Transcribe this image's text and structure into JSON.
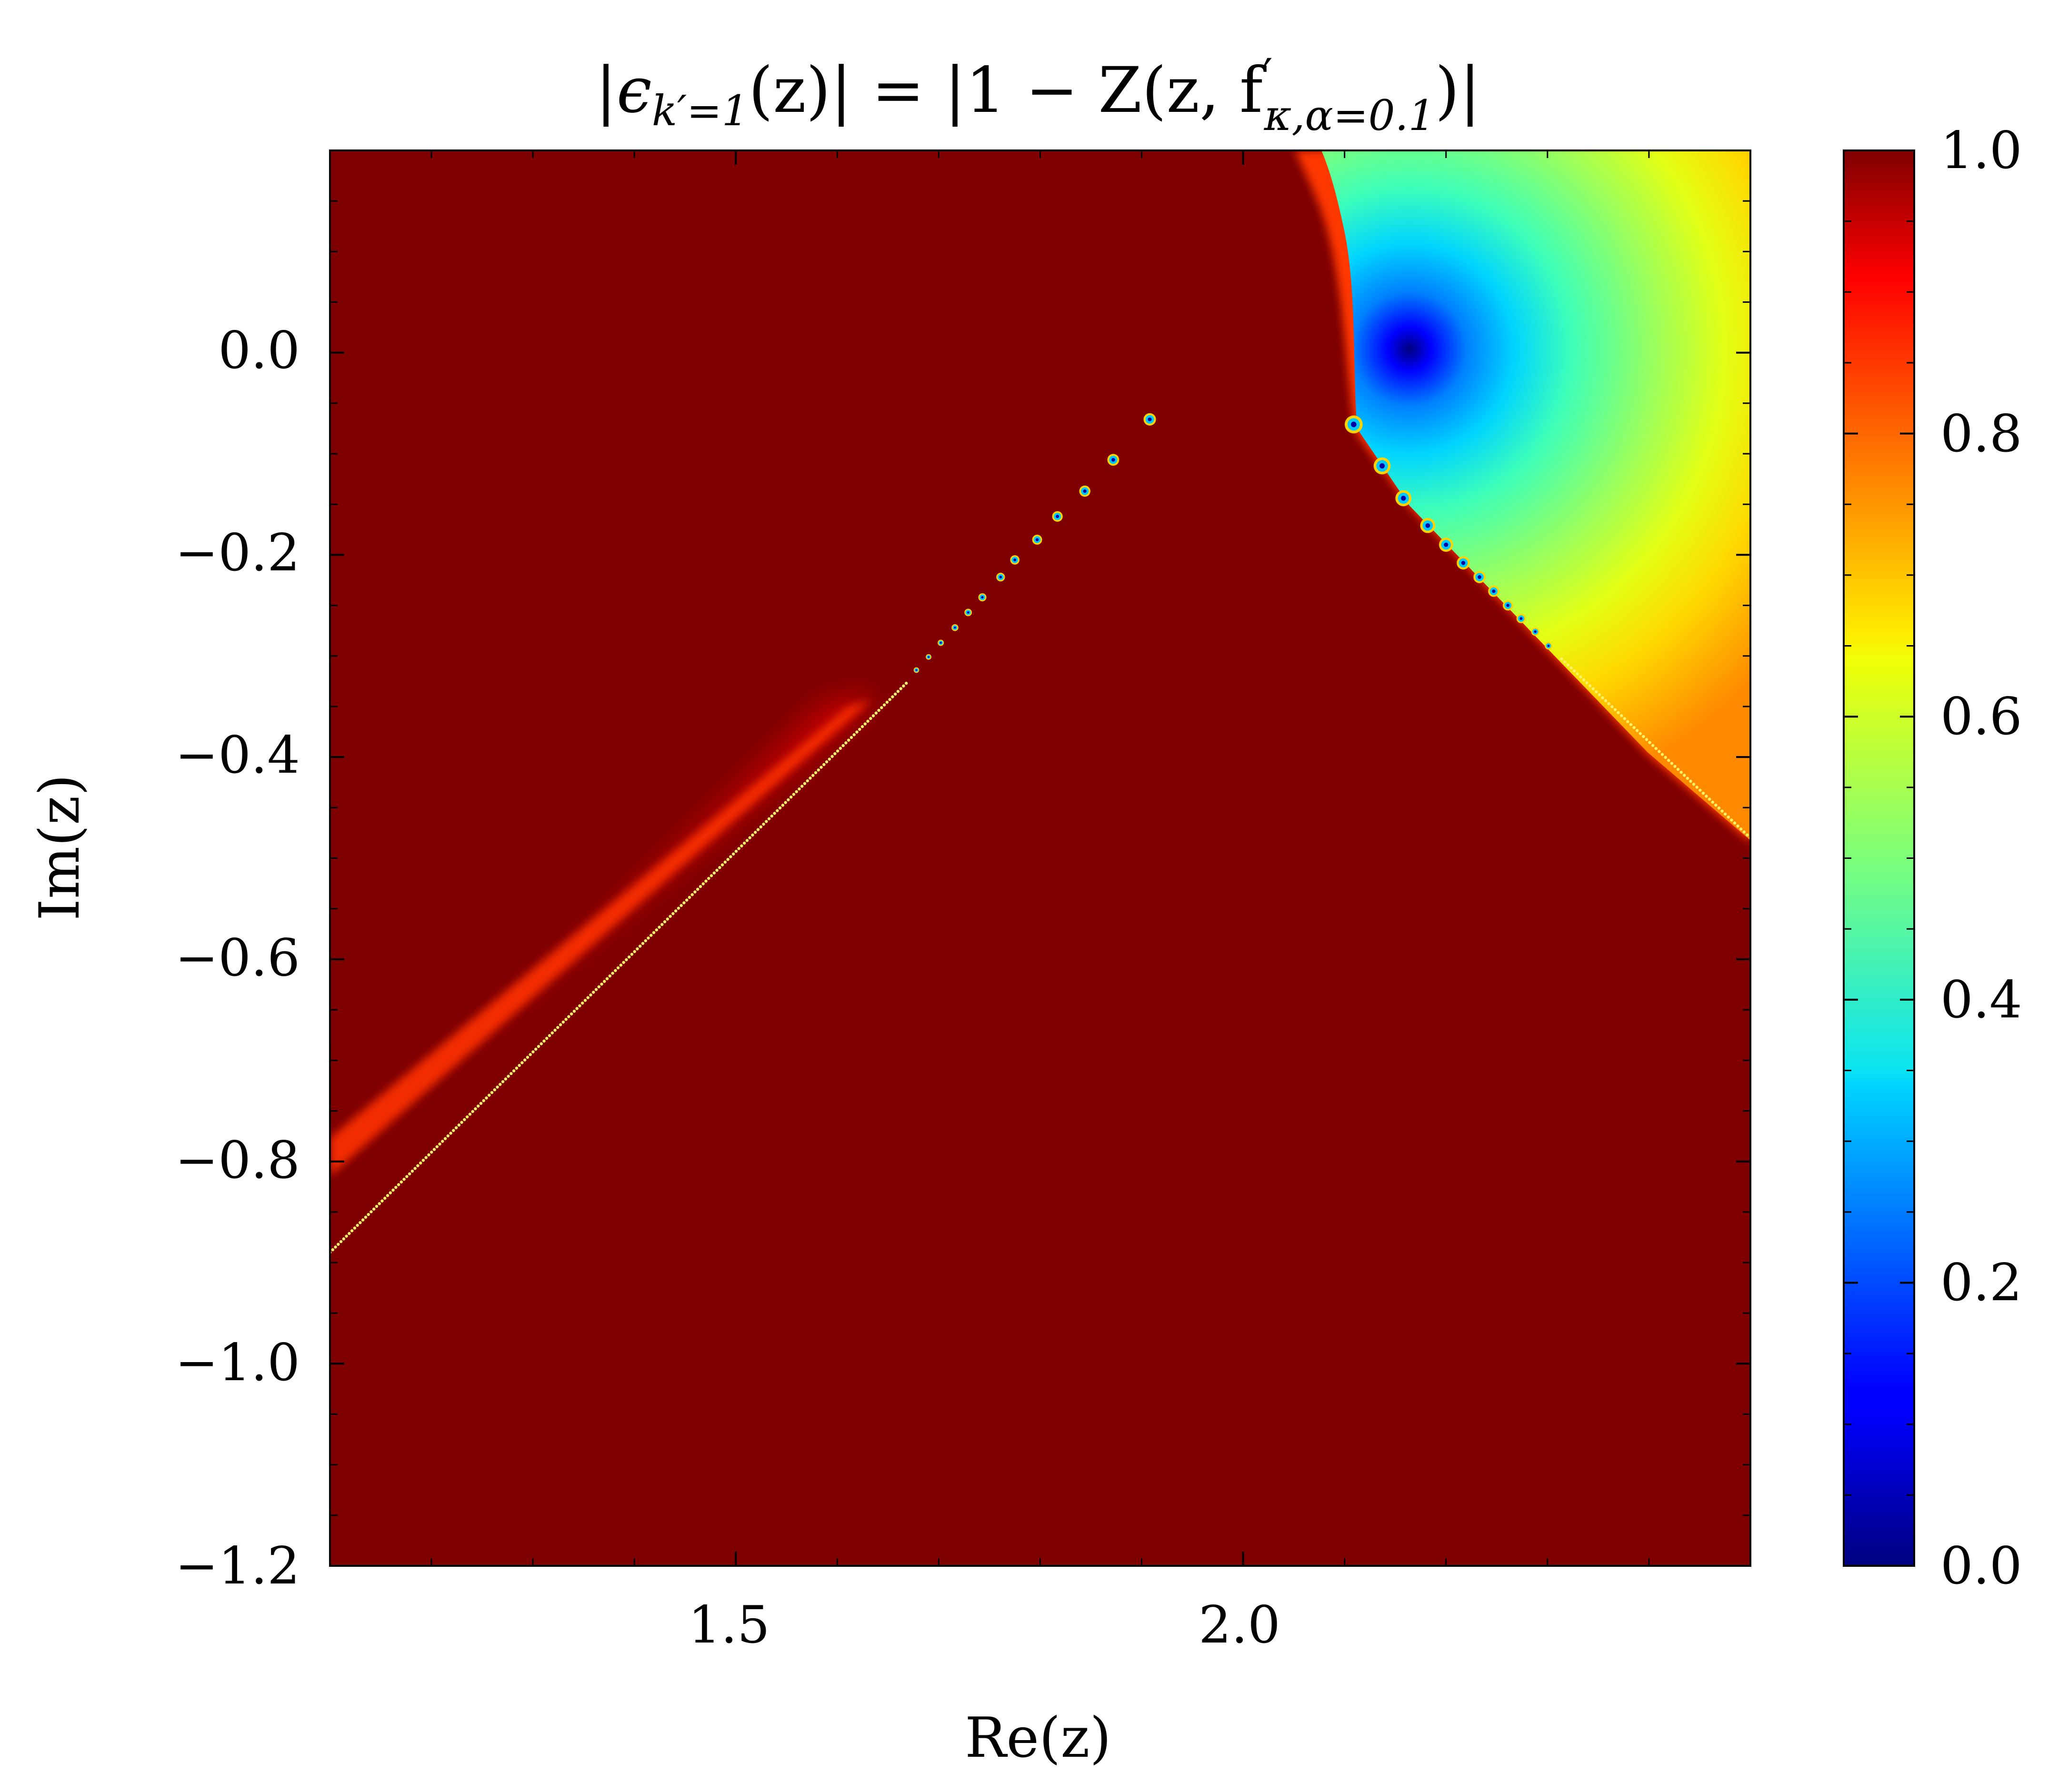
{
  "chart_data": {
    "type": "heatmap",
    "title": {
      "prefix": "|",
      "eps": "ϵ",
      "eps_sub": "k′=1",
      "mid": "(z)| = |1 − Z(z, f",
      "f_sup": "′",
      "f_sub": "κ,α=0.1",
      "suffix": ")|"
    },
    "xlabel": "Re(z)",
    "ylabel": "Im(z)",
    "xlim": [
      1.1,
      2.5
    ],
    "ylim": [
      -1.2,
      0.2
    ],
    "x_ticks": [
      {
        "value": 1.5,
        "label": "1.5"
      },
      {
        "value": 2.0,
        "label": "2.0"
      }
    ],
    "x_minor_step": 0.1,
    "y_ticks": [
      {
        "value": 0.0,
        "label": "0.0"
      },
      {
        "value": -0.2,
        "label": "−0.2"
      },
      {
        "value": -0.4,
        "label": "−0.4"
      },
      {
        "value": -0.6,
        "label": "−0.6"
      },
      {
        "value": -0.8,
        "label": "−0.8"
      },
      {
        "value": -1.0,
        "label": "−1.0"
      },
      {
        "value": -1.2,
        "label": "−1.2"
      }
    ],
    "y_minor_step": 0.05,
    "colorbar": {
      "colormap": "jet",
      "range": [
        0.0,
        1.0
      ],
      "ticks": [
        {
          "value": 0.0,
          "label": "0.0"
        },
        {
          "value": 0.2,
          "label": "0.2"
        },
        {
          "value": 0.4,
          "label": "0.4"
        },
        {
          "value": 0.6,
          "label": "0.6"
        },
        {
          "value": 0.8,
          "label": "0.8"
        },
        {
          "value": 1.0,
          "label": "1.0"
        }
      ],
      "minor_step": 0.05
    },
    "background_value": 1.0,
    "features": {
      "minimum": {
        "re": 2.16,
        "im": 0.0,
        "value": 0.0
      },
      "upper_right_region": {
        "boundary_upper": {
          "re": 2.06,
          "im": 0.2
        },
        "boundary_kink": {
          "re": 2.11,
          "im": -0.07
        },
        "boundary_lower": {
          "re": 2.5,
          "im": -0.48
        },
        "edge_value": 0.72
      },
      "left_band": {
        "start": {
          "re": 1.1,
          "im": -0.89
        },
        "end": {
          "re": 1.65,
          "im": -0.33
        },
        "edge_value": 0.85
      },
      "left_zero_chain": [
        {
          "re": 1.908,
          "im": -0.066
        },
        {
          "re": 1.872,
          "im": -0.106
        },
        {
          "re": 1.844,
          "im": -0.137
        },
        {
          "re": 1.817,
          "im": -0.162
        },
        {
          "re": 1.797,
          "im": -0.185
        },
        {
          "re": 1.775,
          "im": -0.205
        },
        {
          "re": 1.761,
          "im": -0.222
        },
        {
          "re": 1.743,
          "im": -0.242
        },
        {
          "re": 1.729,
          "im": -0.257
        },
        {
          "re": 1.716,
          "im": -0.272
        },
        {
          "re": 1.702,
          "im": -0.287
        },
        {
          "re": 1.69,
          "im": -0.301
        },
        {
          "re": 1.678,
          "im": -0.314
        }
      ],
      "right_zero_chain": [
        {
          "re": 2.109,
          "im": -0.071
        },
        {
          "re": 2.137,
          "im": -0.112
        },
        {
          "re": 2.158,
          "im": -0.144
        },
        {
          "re": 2.182,
          "im": -0.171
        },
        {
          "re": 2.2,
          "im": -0.19
        },
        {
          "re": 2.217,
          "im": -0.208
        },
        {
          "re": 2.233,
          "im": -0.222
        },
        {
          "re": 2.247,
          "im": -0.236
        },
        {
          "re": 2.261,
          "im": -0.25
        },
        {
          "re": 2.274,
          "im": -0.263
        },
        {
          "re": 2.288,
          "im": -0.276
        },
        {
          "re": 2.301,
          "im": -0.29
        }
      ]
    }
  }
}
